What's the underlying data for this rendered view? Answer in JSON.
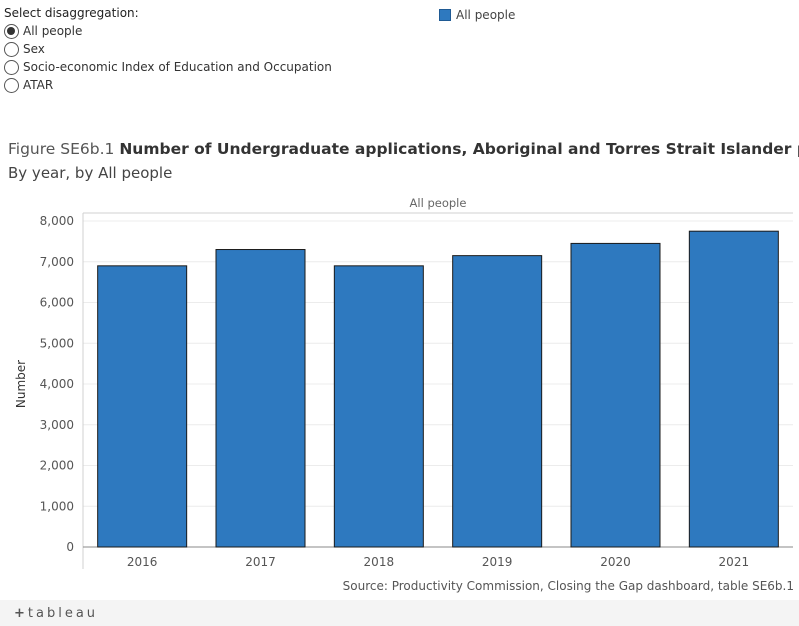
{
  "controls": {
    "label": "Select disaggregation:",
    "options": [
      {
        "label": "All people",
        "checked": true
      },
      {
        "label": "Sex",
        "checked": false
      },
      {
        "label": "Socio-economic Index of Education and Occupation",
        "checked": false
      },
      {
        "label": "ATAR",
        "checked": false
      }
    ]
  },
  "legend": {
    "label": "All people",
    "color": "#2e79bf"
  },
  "header": {
    "title_prefix": "Figure SE6b.1",
    "title_main": "Number of Undergraduate applications, Aboriginal and Torres Strait Islander people, Aust",
    "subtitle": "By year, by All people"
  },
  "chart_data": {
    "type": "bar",
    "panel_label": "All people",
    "categories": [
      "2016",
      "2017",
      "2018",
      "2019",
      "2020",
      "2021"
    ],
    "series": [
      {
        "name": "All people",
        "values": [
          6900,
          7300,
          6900,
          7150,
          7450,
          7750
        ],
        "color": "#2e79bf"
      }
    ],
    "ylabel": "Number",
    "ylim": [
      0,
      8000
    ],
    "yticks": [
      0,
      1000,
      2000,
      3000,
      4000,
      5000,
      6000,
      7000,
      8000
    ],
    "ytick_labels": [
      "0",
      "1,000",
      "2,000",
      "3,000",
      "4,000",
      "5,000",
      "6,000",
      "7,000",
      "8,000"
    ],
    "grid": true
  },
  "source": "Source: Productivity Commission, Closing the Gap dashboard, table SE6b.1",
  "footer": {
    "logo_text": "tableau"
  }
}
